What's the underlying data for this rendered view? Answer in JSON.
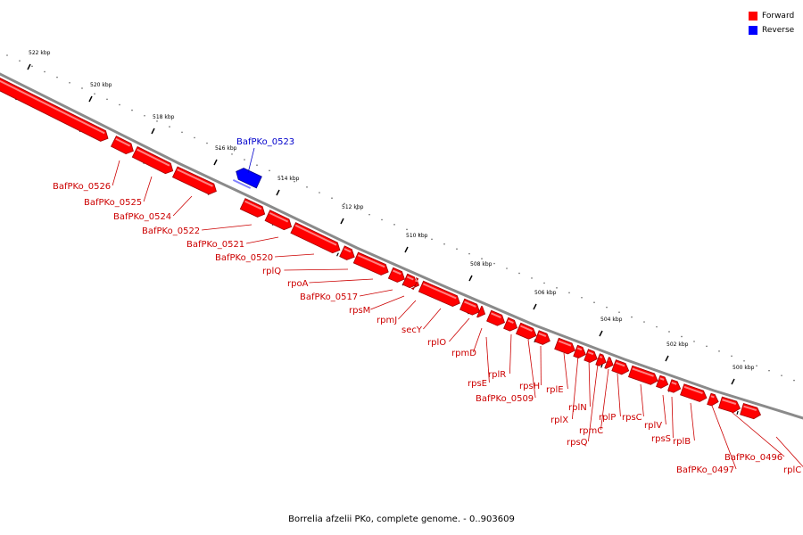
{
  "legend": {
    "forward": {
      "label": "Forward",
      "color": "#ff0000"
    },
    "reverse": {
      "label": "Reverse",
      "color": "#0000ff"
    }
  },
  "caption": "Borrelia afzelii PKo, complete genome. - 0..903609",
  "scale_unit": "kbp",
  "ticks": [
    500,
    502,
    504,
    506,
    508,
    510,
    512,
    514,
    516,
    518,
    520,
    522
  ],
  "genes": [
    {
      "name": "BafPKo_0526",
      "strand": "forward"
    },
    {
      "name": "BafPKo_0525",
      "strand": "forward"
    },
    {
      "name": "BafPKo_0524",
      "strand": "forward"
    },
    {
      "name": "BafPKo_0523",
      "strand": "reverse"
    },
    {
      "name": "BafPKo_0522",
      "strand": "forward"
    },
    {
      "name": "BafPKo_0521",
      "strand": "forward"
    },
    {
      "name": "BafPKo_0520",
      "strand": "forward"
    },
    {
      "name": "rplQ",
      "strand": "forward"
    },
    {
      "name": "rpoA",
      "strand": "forward"
    },
    {
      "name": "BafPKo_0517",
      "strand": "forward"
    },
    {
      "name": "rpsM",
      "strand": "forward"
    },
    {
      "name": "rpmJ",
      "strand": "forward"
    },
    {
      "name": "secY",
      "strand": "forward"
    },
    {
      "name": "rplO",
      "strand": "forward"
    },
    {
      "name": "rpmD",
      "strand": "forward"
    },
    {
      "name": "rpsE",
      "strand": "forward"
    },
    {
      "name": "rplR",
      "strand": "forward"
    },
    {
      "name": "BafPKo_0509",
      "strand": "forward"
    },
    {
      "name": "rpsH",
      "strand": "forward"
    },
    {
      "name": "rplE",
      "strand": "forward"
    },
    {
      "name": "rplX",
      "strand": "forward"
    },
    {
      "name": "rplN",
      "strand": "forward"
    },
    {
      "name": "rpsQ",
      "strand": "forward"
    },
    {
      "name": "rpmC",
      "strand": "forward"
    },
    {
      "name": "rplP",
      "strand": "forward"
    },
    {
      "name": "rpsC",
      "strand": "forward"
    },
    {
      "name": "rplV",
      "strand": "forward"
    },
    {
      "name": "rpsS",
      "strand": "forward"
    },
    {
      "name": "rplB",
      "strand": "forward"
    },
    {
      "name": "BafPKo_0497",
      "strand": "forward"
    },
    {
      "name": "BafPKo_0496",
      "strand": "forward"
    },
    {
      "name": "rplC",
      "strand": "forward"
    }
  ]
}
